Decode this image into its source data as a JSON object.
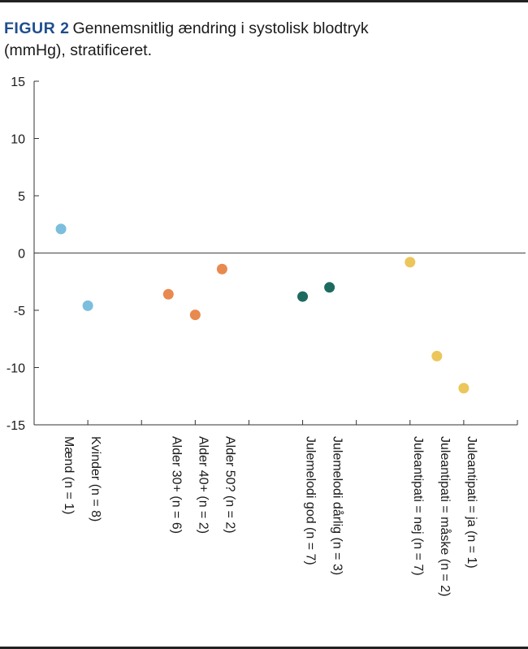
{
  "figure": {
    "label": "FIGUR 2",
    "caption": "Gennemsnitlig ændring i systolisk blodtryk (mmHg), stratificeret."
  },
  "chart_data": {
    "type": "scatter",
    "title": "Gennemsnitlig ændring i systolisk blodtryk (mmHg), stratificeret.",
    "xlabel": "",
    "ylabel": "",
    "ylim": [
      -15,
      15
    ],
    "yticks": [
      15,
      10,
      5,
      0,
      -5,
      -10,
      -15
    ],
    "ytick_labels": [
      "15",
      "10",
      "5",
      "0",
      "-5",
      "-10",
      "-15"
    ],
    "zero_line": true,
    "grid": false,
    "slots": 18,
    "categories": [
      {
        "label": "Mænd (n = 1)",
        "slot": 1,
        "value": 2.1,
        "color": "#7bbedd"
      },
      {
        "label": "Kvinder (n = 8)",
        "slot": 2,
        "value": -4.6,
        "color": "#7bbedd"
      },
      {
        "label": "Alder 30+ (n = 6)",
        "slot": 5,
        "value": -3.6,
        "color": "#e8894f"
      },
      {
        "label": "Alder 40+ (n = 2)",
        "slot": 6,
        "value": -5.4,
        "color": "#e8894f"
      },
      {
        "label": "Alder 50? (n = 2)",
        "slot": 7,
        "value": -1.4,
        "color": "#e8894f"
      },
      {
        "label": "Julemelodi god (n = 7)",
        "slot": 10,
        "value": -3.8,
        "color": "#1d6b5e"
      },
      {
        "label": "Julemelodi dårlig (n = 3)",
        "slot": 11,
        "value": -3.0,
        "color": "#1d6b5e"
      },
      {
        "label": "Juleantipati = nej (n = 7)",
        "slot": 14,
        "value": -0.8,
        "color": "#ecc65a"
      },
      {
        "label": "Juleantipati = måske (n = 2)",
        "slot": 15,
        "value": -9.0,
        "color": "#ecc65a"
      },
      {
        "label": "Juleantipati = ja (n = 1)",
        "slot": 16,
        "value": -11.8,
        "color": "#ecc65a"
      }
    ],
    "x_tick_slots": [
      2,
      4,
      6,
      8,
      10,
      12,
      14,
      16,
      18
    ]
  }
}
